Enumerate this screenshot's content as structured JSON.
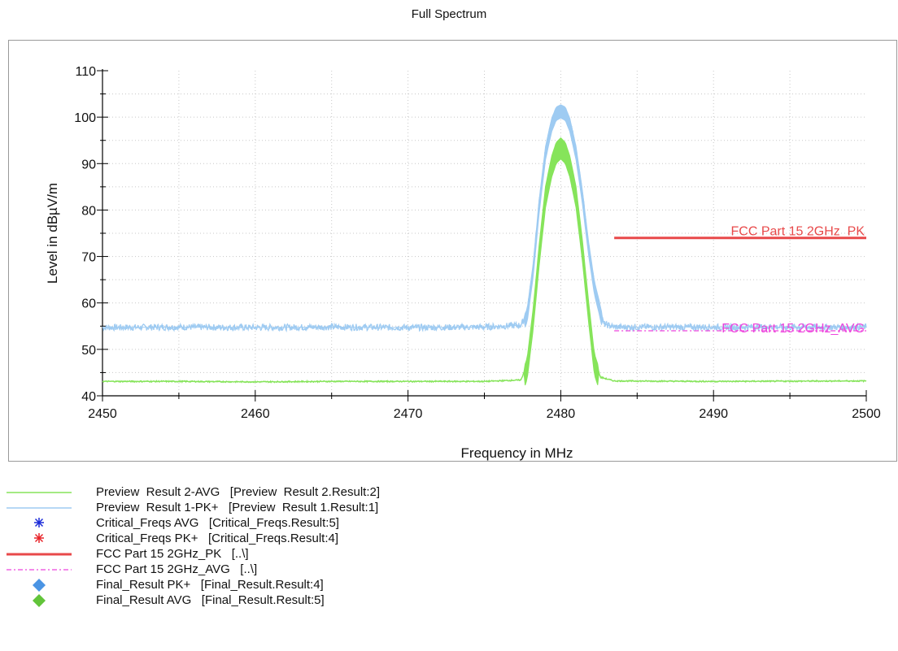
{
  "chart_data": {
    "type": "line",
    "title": "Full Spectrum",
    "xlabel": "Frequency in MHz",
    "ylabel": "Level in dBµV/m",
    "xlim": [
      2450,
      2500
    ],
    "ylim": [
      40,
      110
    ],
    "xticks": [
      2450,
      2460,
      2470,
      2480,
      2490,
      2500
    ],
    "yticks": [
      40,
      50,
      60,
      70,
      80,
      90,
      100,
      110
    ],
    "grid": true,
    "series": [
      {
        "name": "Preview Result 1-PK+",
        "color": "#9ecbf2",
        "x": [
          2450,
          2455,
          2460,
          2465,
          2470,
          2475,
          2477.4,
          2477.8,
          2478.2,
          2478.6,
          2479.0,
          2479.4,
          2479.7,
          2480.0,
          2480.3,
          2480.6,
          2481.0,
          2481.4,
          2481.8,
          2482.2,
          2482.5,
          2482.8,
          2483.5,
          2490,
          2500
        ],
        "y": [
          54.7,
          54.8,
          54.7,
          54.8,
          54.7,
          54.8,
          55.2,
          58,
          68,
          82,
          93,
          99,
          101.5,
          102,
          101.5,
          99,
          93,
          84,
          73,
          64,
          60,
          55.5,
          54.8,
          54.8,
          54.8
        ]
      },
      {
        "name": "Preview Result 2-AVG",
        "color": "#86e45a",
        "x": [
          2450,
          2455,
          2460,
          2465,
          2470,
          2475,
          2477.4,
          2477.8,
          2478.2,
          2478.6,
          2479.0,
          2479.4,
          2479.7,
          2480.0,
          2480.3,
          2480.6,
          2481.0,
          2481.4,
          2481.8,
          2482.2,
          2482.6,
          2483.5,
          2490,
          2500
        ],
        "y": [
          43.1,
          43.1,
          43.0,
          43.1,
          43.1,
          43.1,
          43.4,
          47,
          58,
          72,
          84,
          90.5,
          93.5,
          94.5,
          93.5,
          90.5,
          84,
          73,
          60,
          48,
          44,
          43.2,
          43.1,
          43.2
        ]
      },
      {
        "name": "FCC Part 15 2GHz_PK",
        "color": "#e8494a",
        "x": [
          2483.5,
          2500
        ],
        "y": [
          74,
          74
        ]
      },
      {
        "name": "FCC Part 15 2GHz_AVG",
        "color": "#ee44dd",
        "x": [
          2483.5,
          2500
        ],
        "y": [
          54,
          54
        ]
      }
    ],
    "annotations": [
      "FCC Part 15 2GHz_PK",
      "FCC Part 15 2GHz_AVG"
    ]
  },
  "legend": {
    "items": [
      {
        "label": "Preview  Result 2-AVG   [Preview  Result 2.Result:2]",
        "symbol": "line",
        "color": "#86e45a"
      },
      {
        "label": "Preview  Result 1-PK+   [Preview  Result 1.Result:1]",
        "symbol": "line",
        "color": "#9ecbf2"
      },
      {
        "label": "Critical_Freqs AVG   [Critical_Freqs.Result:5]",
        "symbol": "asterisk",
        "color": "#1a2ad8"
      },
      {
        "label": "Critical_Freqs PK+   [Critical_Freqs.Result:4]",
        "symbol": "asterisk",
        "color": "#e8242a"
      },
      {
        "label": "FCC Part 15 2GHz_PK   [..\\]",
        "symbol": "thick-line",
        "color": "#e8494a"
      },
      {
        "label": "FCC Part 15 2GHz_AVG   [..\\]",
        "symbol": "dashdot-line",
        "color": "#ee44dd"
      },
      {
        "label": "Final_Result PK+   [Final_Result.Result:4]",
        "symbol": "diamond",
        "color": "#4a94e4"
      },
      {
        "label": "Final_Result AVG   [Final_Result.Result:5]",
        "symbol": "diamond",
        "color": "#62c43a"
      }
    ]
  }
}
